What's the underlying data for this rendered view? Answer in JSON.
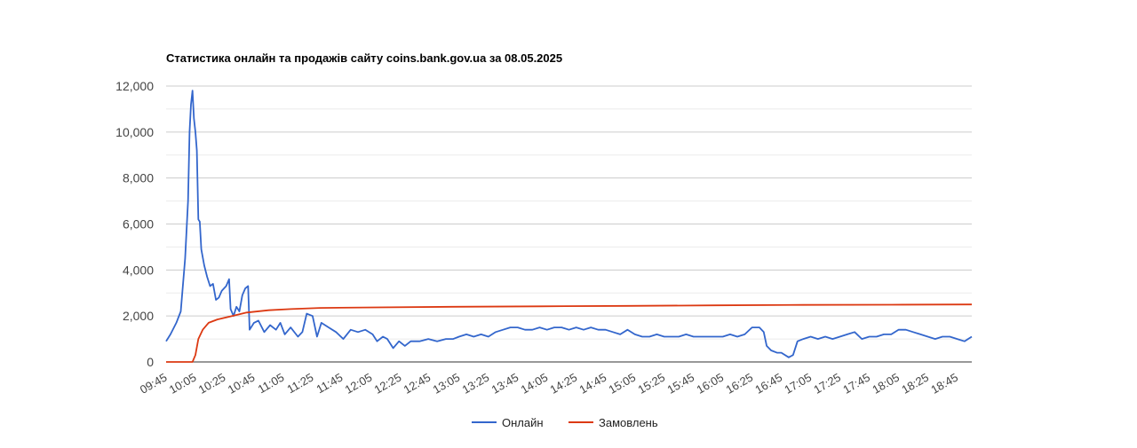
{
  "chart_data": {
    "type": "line",
    "title": "Статистика онлайн та продажів сайту coins.bank.gov.ua за 08.05.2025",
    "xlabel": "",
    "ylabel": "",
    "ylim": [
      0,
      12000
    ],
    "y_ticks": [
      "0",
      "2,000",
      "4,000",
      "6,000",
      "8,000",
      "10,000",
      "12,000"
    ],
    "x_ticks": [
      "09:45",
      "10:05",
      "10:25",
      "10:45",
      "11:05",
      "11:25",
      "11:45",
      "12:05",
      "12:25",
      "12:45",
      "13:05",
      "13:25",
      "13:45",
      "14:05",
      "14:25",
      "14:45",
      "15:05",
      "15:25",
      "15:45",
      "16:05",
      "16:25",
      "16:45",
      "17:05",
      "17:25",
      "17:45",
      "18:05",
      "18:25",
      "18:45"
    ],
    "grid": true,
    "legend_position": "bottom",
    "series": [
      {
        "name": "Онлайн",
        "color": "#3366cc",
        "points": [
          [
            "09:45",
            900
          ],
          [
            "09:48",
            1200
          ],
          [
            "09:52",
            1700
          ],
          [
            "09:55",
            2200
          ],
          [
            "09:58",
            4500
          ],
          [
            "10:00",
            7000
          ],
          [
            "10:01",
            10000
          ],
          [
            "10:02",
            11200
          ],
          [
            "10:03",
            11800
          ],
          [
            "10:04",
            10600
          ],
          [
            "10:05",
            10000
          ],
          [
            "10:06",
            9200
          ],
          [
            "10:07",
            6200
          ],
          [
            "10:08",
            6100
          ],
          [
            "10:09",
            4900
          ],
          [
            "10:11",
            4200
          ],
          [
            "10:13",
            3700
          ],
          [
            "10:15",
            3300
          ],
          [
            "10:17",
            3400
          ],
          [
            "10:19",
            2700
          ],
          [
            "10:21",
            2800
          ],
          [
            "10:23",
            3100
          ],
          [
            "10:26",
            3300
          ],
          [
            "10:28",
            3600
          ],
          [
            "10:29",
            2300
          ],
          [
            "10:31",
            2000
          ],
          [
            "10:33",
            2400
          ],
          [
            "10:35",
            2200
          ],
          [
            "10:37",
            2900
          ],
          [
            "10:39",
            3200
          ],
          [
            "10:41",
            3300
          ],
          [
            "10:42",
            1400
          ],
          [
            "10:45",
            1700
          ],
          [
            "10:48",
            1800
          ],
          [
            "10:52",
            1300
          ],
          [
            "10:56",
            1600
          ],
          [
            "11:00",
            1400
          ],
          [
            "11:03",
            1700
          ],
          [
            "11:06",
            1200
          ],
          [
            "11:10",
            1500
          ],
          [
            "11:15",
            1100
          ],
          [
            "11:18",
            1300
          ],
          [
            "11:21",
            2100
          ],
          [
            "11:25",
            2000
          ],
          [
            "11:28",
            1100
          ],
          [
            "11:31",
            1700
          ],
          [
            "11:36",
            1500
          ],
          [
            "11:41",
            1300
          ],
          [
            "11:46",
            1000
          ],
          [
            "11:51",
            1400
          ],
          [
            "11:56",
            1300
          ],
          [
            "12:01",
            1400
          ],
          [
            "12:06",
            1200
          ],
          [
            "12:09",
            900
          ],
          [
            "12:13",
            1100
          ],
          [
            "12:16",
            1000
          ],
          [
            "12:20",
            600
          ],
          [
            "12:24",
            900
          ],
          [
            "12:28",
            700
          ],
          [
            "12:32",
            900
          ],
          [
            "12:38",
            900
          ],
          [
            "12:44",
            1000
          ],
          [
            "12:50",
            900
          ],
          [
            "12:56",
            1000
          ],
          [
            "13:01",
            1000
          ],
          [
            "13:05",
            1100
          ],
          [
            "13:10",
            1200
          ],
          [
            "13:15",
            1100
          ],
          [
            "13:20",
            1200
          ],
          [
            "13:25",
            1100
          ],
          [
            "13:30",
            1300
          ],
          [
            "13:35",
            1400
          ],
          [
            "13:40",
            1500
          ],
          [
            "13:45",
            1500
          ],
          [
            "13:50",
            1400
          ],
          [
            "13:55",
            1400
          ],
          [
            "14:00",
            1500
          ],
          [
            "14:05",
            1400
          ],
          [
            "14:10",
            1500
          ],
          [
            "14:15",
            1500
          ],
          [
            "14:20",
            1400
          ],
          [
            "14:25",
            1500
          ],
          [
            "14:30",
            1400
          ],
          [
            "14:35",
            1500
          ],
          [
            "14:40",
            1400
          ],
          [
            "14:45",
            1400
          ],
          [
            "14:50",
            1300
          ],
          [
            "14:55",
            1200
          ],
          [
            "15:00",
            1400
          ],
          [
            "15:05",
            1200
          ],
          [
            "15:10",
            1100
          ],
          [
            "15:15",
            1100
          ],
          [
            "15:20",
            1200
          ],
          [
            "15:25",
            1100
          ],
          [
            "15:30",
            1100
          ],
          [
            "15:35",
            1100
          ],
          [
            "15:40",
            1200
          ],
          [
            "15:45",
            1100
          ],
          [
            "15:50",
            1100
          ],
          [
            "15:55",
            1100
          ],
          [
            "16:00",
            1100
          ],
          [
            "16:05",
            1100
          ],
          [
            "16:10",
            1200
          ],
          [
            "16:15",
            1100
          ],
          [
            "16:20",
            1200
          ],
          [
            "16:25",
            1500
          ],
          [
            "16:30",
            1500
          ],
          [
            "16:33",
            1300
          ],
          [
            "16:35",
            700
          ],
          [
            "16:38",
            500
          ],
          [
            "16:42",
            400
          ],
          [
            "16:45",
            400
          ],
          [
            "16:50",
            200
          ],
          [
            "16:53",
            300
          ],
          [
            "16:56",
            900
          ],
          [
            "17:00",
            1000
          ],
          [
            "17:05",
            1100
          ],
          [
            "17:10",
            1000
          ],
          [
            "17:15",
            1100
          ],
          [
            "17:20",
            1000
          ],
          [
            "17:25",
            1100
          ],
          [
            "17:30",
            1200
          ],
          [
            "17:35",
            1300
          ],
          [
            "17:40",
            1000
          ],
          [
            "17:45",
            1100
          ],
          [
            "17:50",
            1100
          ],
          [
            "17:55",
            1200
          ],
          [
            "18:00",
            1200
          ],
          [
            "18:05",
            1400
          ],
          [
            "18:10",
            1400
          ],
          [
            "18:15",
            1300
          ],
          [
            "18:20",
            1200
          ],
          [
            "18:25",
            1100
          ],
          [
            "18:30",
            1000
          ],
          [
            "18:35",
            1100
          ],
          [
            "18:40",
            1100
          ],
          [
            "18:45",
            1000
          ],
          [
            "18:50",
            900
          ],
          [
            "18:55",
            1100
          ]
        ]
      },
      {
        "name": "Замовлень",
        "color": "#dc3912",
        "points": [
          [
            "09:45",
            0
          ],
          [
            "10:03",
            0
          ],
          [
            "10:05",
            300
          ],
          [
            "10:07",
            1000
          ],
          [
            "10:10",
            1400
          ],
          [
            "10:14",
            1700
          ],
          [
            "10:20",
            1850
          ],
          [
            "10:30",
            2000
          ],
          [
            "10:40",
            2150
          ],
          [
            "10:55",
            2250
          ],
          [
            "11:10",
            2300
          ],
          [
            "11:30",
            2350
          ],
          [
            "12:00",
            2370
          ],
          [
            "13:00",
            2400
          ],
          [
            "14:00",
            2420
          ],
          [
            "15:00",
            2440
          ],
          [
            "16:00",
            2460
          ],
          [
            "17:00",
            2480
          ],
          [
            "18:00",
            2490
          ],
          [
            "18:55",
            2500
          ]
        ]
      }
    ]
  }
}
